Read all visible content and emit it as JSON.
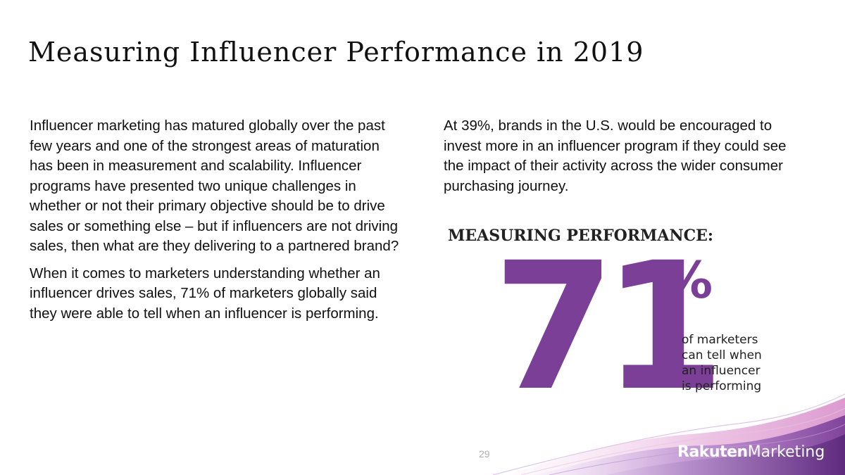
{
  "slide": {
    "title": "Measuring Influencer Performance in 2019",
    "page_number": "29"
  },
  "left_column": {
    "paragraphs": [
      "Influencer marketing has matured globally over the past few years and one of the strongest areas of maturation has been in measurement and scalability. Influencer programs have presented two unique challenges in whether or not their primary objective should be to drive sales or something else – but if influencers are not driving sales, then what are they delivering to a partnered brand?",
      "When it comes to marketers understanding whether an influencer drives sales, 71% of marketers globally said they were able to tell when an influencer is performing."
    ]
  },
  "right_column": {
    "paragraph": "At 39%, brands in the U.S. would be encouraged to invest more in an influencer program if they could see the impact of their activity across the wider consumer purchasing journey."
  },
  "stat": {
    "heading": "MEASURING PERFORMANCE:",
    "number": "71",
    "unit": "%",
    "caption_lines": [
      "of marketers",
      "can tell when",
      "an influencer",
      "is performing"
    ]
  },
  "logo": {
    "brand_primary": "Rakuten",
    "brand_secondary": "Marketing"
  },
  "colors": {
    "accent_purple": "#7b3f98",
    "light_purple": "#c9a9dd",
    "pink_wave": "#e7bfe0",
    "text": "#111111",
    "page_number": "#b0b0b0"
  }
}
